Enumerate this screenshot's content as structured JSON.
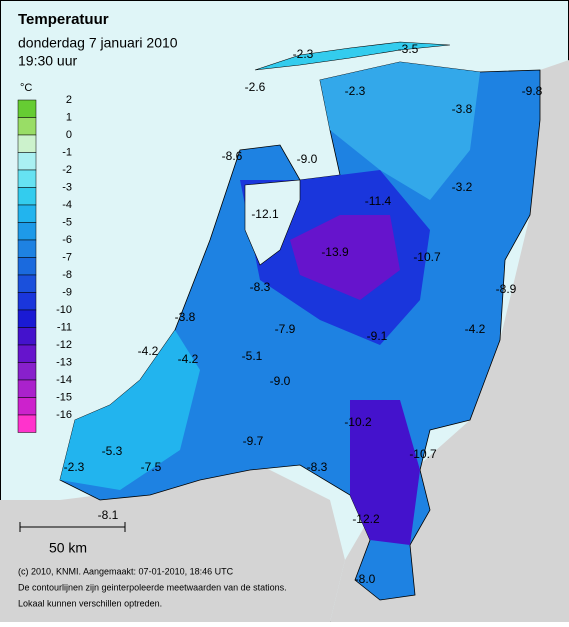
{
  "header": {
    "title": "Temperatuur",
    "date": "donderdag 7 januari 2010",
    "time": "19:30 uur"
  },
  "legend": {
    "unit": "°C",
    "items": [
      {
        "label": "2",
        "color": "#66cc33"
      },
      {
        "label": "1",
        "color": "#99dd66"
      },
      {
        "label": "0",
        "color": "#ccf2cc"
      },
      {
        "label": "-1",
        "color": "#aaf0f2"
      },
      {
        "label": "-2",
        "color": "#66e2f2"
      },
      {
        "label": "-3",
        "color": "#33ccee"
      },
      {
        "label": "-4",
        "color": "#22b4ee"
      },
      {
        "label": "-5",
        "color": "#1e9ae8"
      },
      {
        "label": "-6",
        "color": "#1e82e2"
      },
      {
        "label": "-7",
        "color": "#1a6ade"
      },
      {
        "label": "-8",
        "color": "#1a50dc"
      },
      {
        "label": "-9",
        "color": "#1a36dc"
      },
      {
        "label": "-10",
        "color": "#1a1ad4"
      },
      {
        "label": "-11",
        "color": "#4412cc"
      },
      {
        "label": "-12",
        "color": "#6614cc"
      },
      {
        "label": "-13",
        "color": "#8820cc"
      },
      {
        "label": "-14",
        "color": "#aa22cc"
      },
      {
        "label": "-15",
        "color": "#cc22cc"
      },
      {
        "label": "-16",
        "color": "#ff33cc"
      }
    ]
  },
  "stations": [
    "-2.3",
    "-3.5",
    "-2.6",
    "-2.3",
    "-9.8",
    "-3.8",
    "-8.6",
    "-9.0",
    "-3.2",
    "-11.4",
    "-12.1",
    "-13.9",
    "-10.7",
    "-8.3",
    "-8.9",
    "-3.8",
    "-7.9",
    "-4.2",
    "-9.1",
    "-4.2",
    "-4.2",
    "-5.1",
    "-9.0",
    "-10.2",
    "-10.7",
    "-5.3",
    "-9.7",
    "-8.3",
    "-2.3",
    "-7.5",
    "-8.1",
    "-12.2",
    "-8.0"
  ],
  "scale": "50 km",
  "footer": [
    "(c) 2010, KNMI. Aangemaakt: 07-01-2010, 18:46 UTC",
    "De contourlijnen zijn geinterpoleerde meetwaarden van de stations.",
    "Lokaal kunnen verschillen optreden."
  ]
}
